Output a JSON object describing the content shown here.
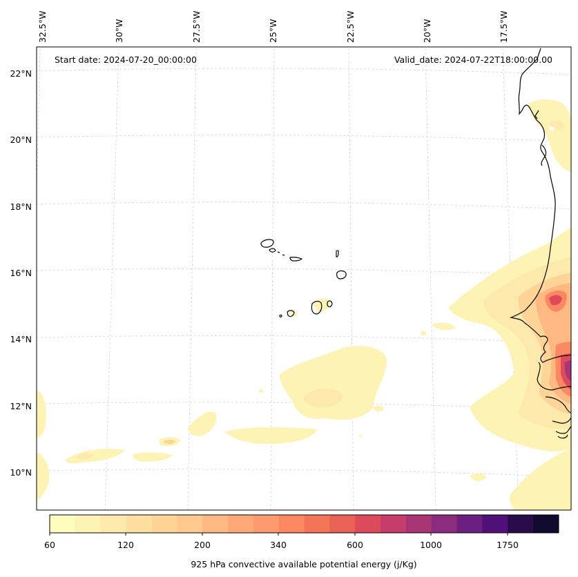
{
  "header": {
    "start_date": "Start date: 2024-07-20_00:00:00",
    "valid_date": "Valid_date: 2024-07-22T18:00:00.00"
  },
  "longitude_ticks": [
    "32.5°W",
    "30°W",
    "27.5°W",
    "25°W",
    "22.5°W",
    "20°W",
    "17.5°W"
  ],
  "latitude_ticks": [
    "22°N",
    "20°N",
    "18°N",
    "16°N",
    "14°N",
    "12°N",
    "10°N"
  ],
  "colorbar": {
    "title": "925 hPa convective available potential energy (j/Kg)",
    "tick_labels": [
      "60",
      "120",
      "200",
      "340",
      "600",
      "1000",
      "1750"
    ],
    "colors": [
      "#fcfdbf",
      "#fcf3b5",
      "#fde9ab",
      "#fedfa1",
      "#fed497",
      "#fec98d",
      "#feb983",
      "#fea879",
      "#fd9a6e",
      "#fb8861",
      "#f57558",
      "#ea6155",
      "#dd4a5c",
      "#c43d6b",
      "#a83677",
      "#8b2c7e",
      "#6b1f80",
      "#501077",
      "#2b0c4a",
      "#100b2e"
    ]
  },
  "map": {
    "land_outline_color": "#000000",
    "graticule_color": "#d0d0d0"
  }
}
